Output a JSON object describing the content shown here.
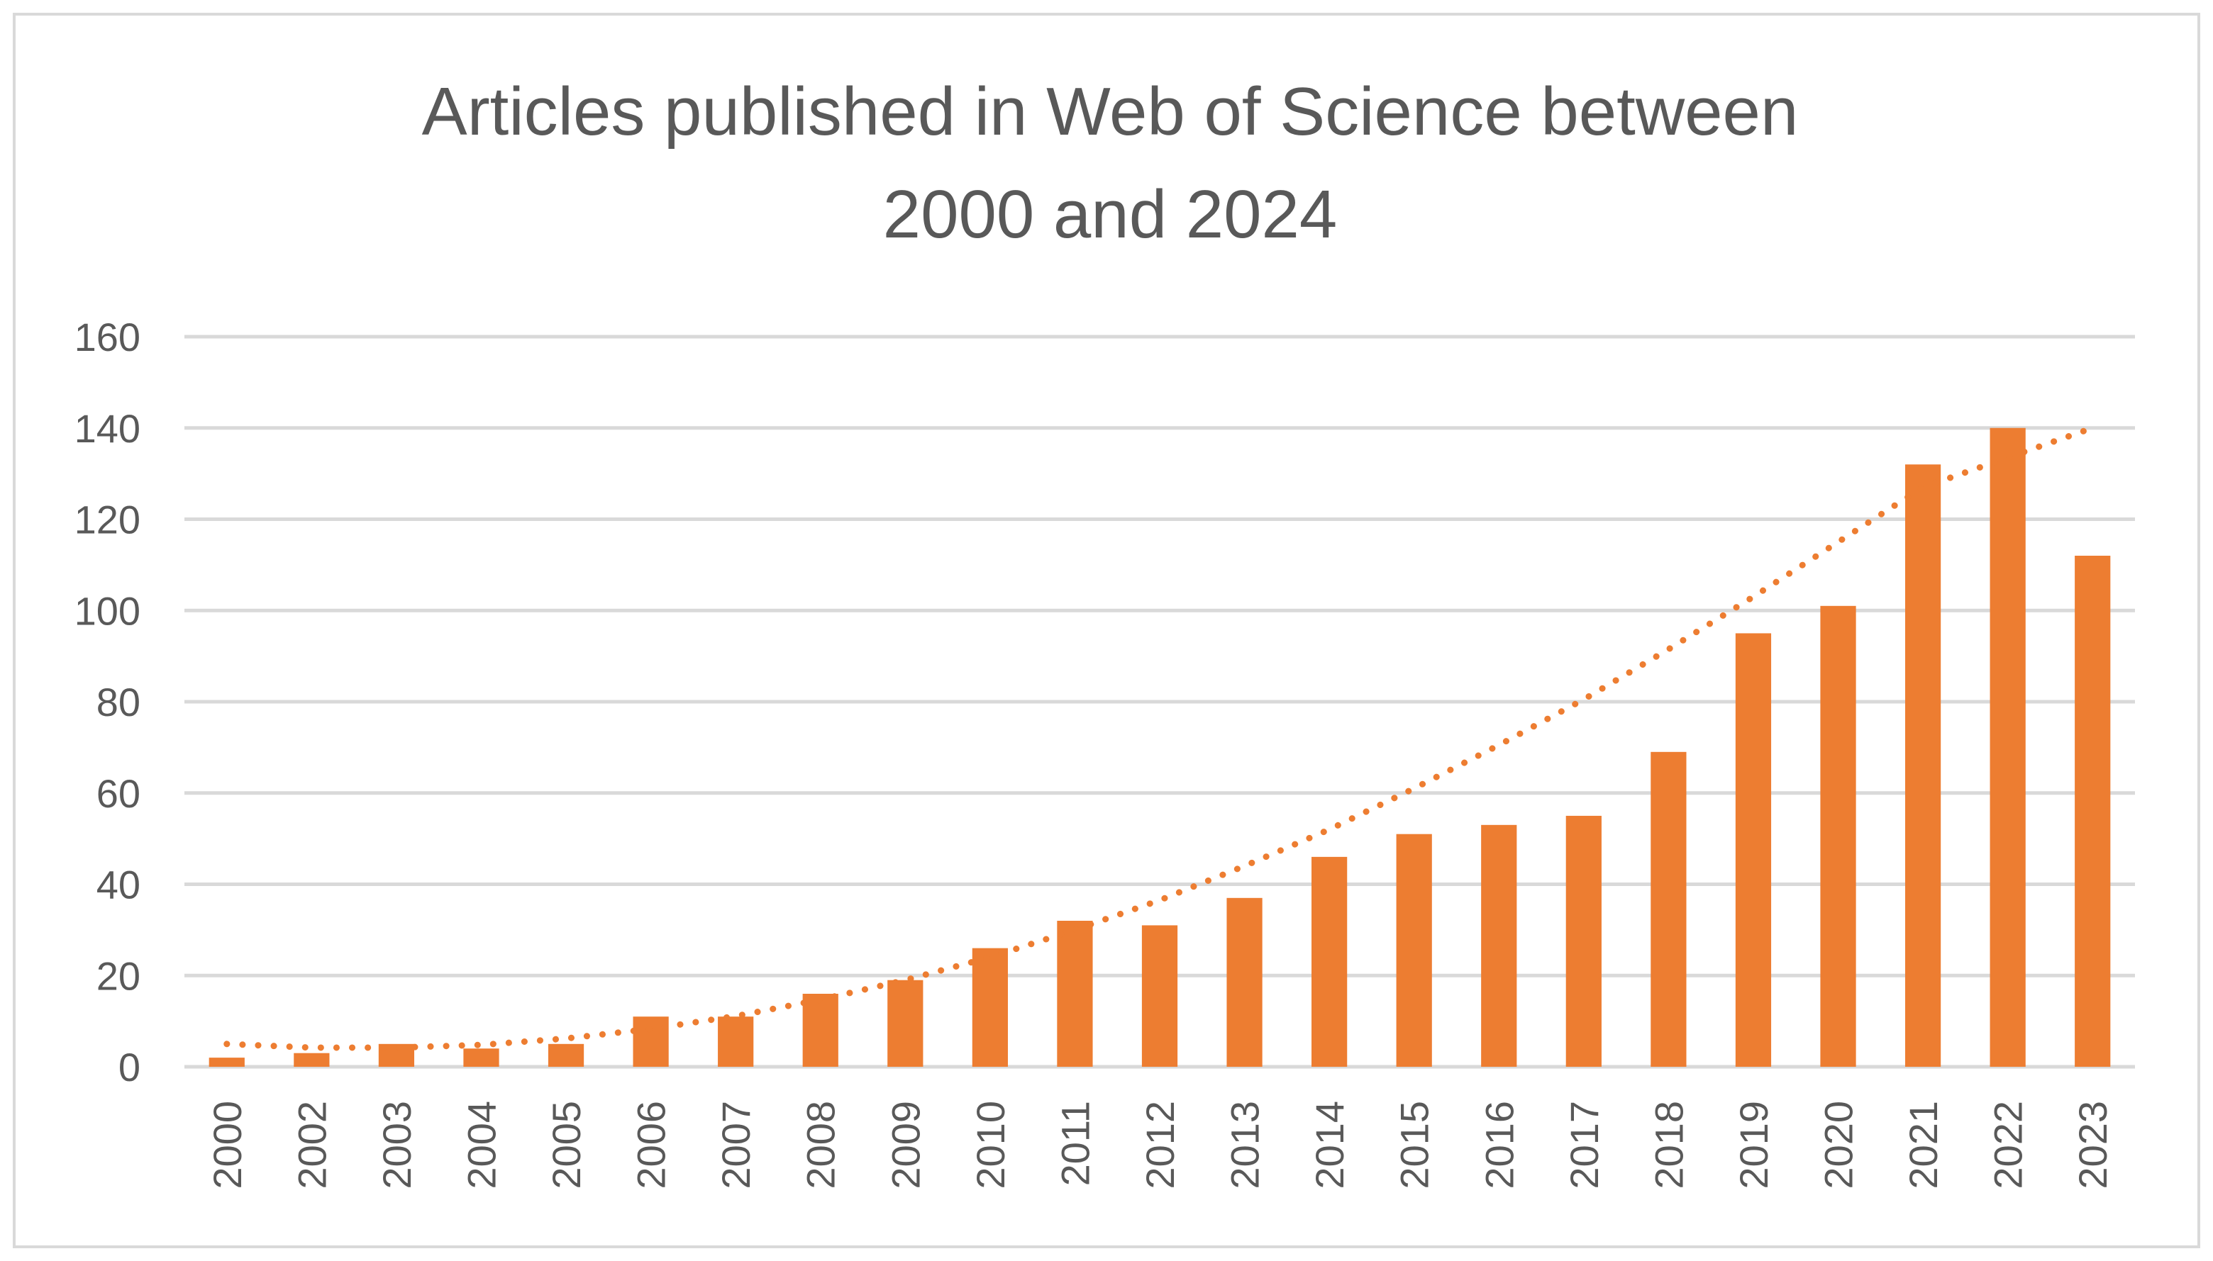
{
  "chart_data": {
    "type": "bar",
    "title_lines": [
      "Articles published in Web of Science between",
      "2000 and 2024"
    ],
    "xlabel": "",
    "ylabel": "",
    "categories": [
      "2000",
      "2002",
      "2003",
      "2004",
      "2005",
      "2006",
      "2007",
      "2008",
      "2009",
      "2010",
      "2011",
      "2012",
      "2013",
      "2014",
      "2015",
      "2016",
      "2017",
      "2018",
      "2019",
      "2020",
      "2021",
      "2022",
      "2023"
    ],
    "values": [
      2,
      3,
      5,
      4,
      5,
      11,
      11,
      16,
      19,
      26,
      32,
      31,
      37,
      46,
      51,
      53,
      55,
      69,
      95,
      101,
      132,
      140,
      112
    ],
    "ylim": [
      0,
      160
    ],
    "yticks": [
      0,
      20,
      40,
      60,
      80,
      100,
      120,
      140,
      160
    ],
    "grid": true,
    "trendline": {
      "type": "polynomial-dotted",
      "values": [
        5,
        4.2,
        4.2,
        4.8,
        6.2,
        8.3,
        11.1,
        14.7,
        19,
        24,
        30,
        36.5,
        44,
        52,
        61,
        70.5,
        80.5,
        91.5,
        103,
        115,
        127,
        133.5,
        140
      ]
    },
    "bar_color": "#ED7D31",
    "trend_color": "#ED7D31",
    "grid_color": "#D9D9D9",
    "text_color": "#595959",
    "border_color": "#D9D9D9"
  }
}
